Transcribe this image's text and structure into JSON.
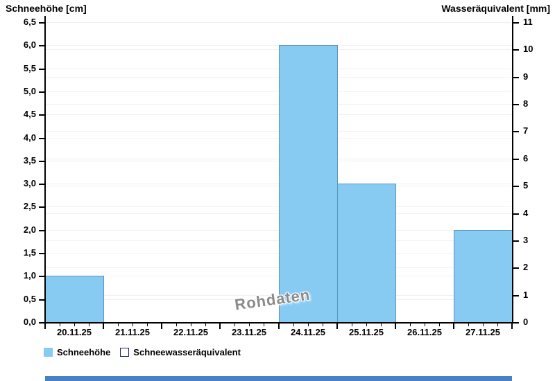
{
  "chart_data": {
    "type": "bar",
    "left_axis": {
      "label": "Schneehöhe [cm]",
      "min": 0,
      "max": 6.5,
      "step": 0.5,
      "tick_labels": [
        "0,0",
        "0,5",
        "1,0",
        "1,5",
        "2,0",
        "2,5",
        "3,0",
        "3,5",
        "4,0",
        "4,5",
        "5,0",
        "5,5",
        "6,0",
        "6,5"
      ]
    },
    "right_axis": {
      "label": "Wasseräquivalent [mm]",
      "min": 0,
      "max": 11,
      "step": 1,
      "tick_labels": [
        "0",
        "1",
        "2",
        "3",
        "4",
        "5",
        "6",
        "7",
        "8",
        "9",
        "10",
        "11"
      ]
    },
    "categories": [
      "20.11.25",
      "21.11.25",
      "22.11.25",
      "23.11.25",
      "24.11.25",
      "25.11.25",
      "26.11.25",
      "27.11.25"
    ],
    "series": [
      {
        "name": "Schneehöhe",
        "axis": "left",
        "unit": "cm",
        "values": [
          1,
          0,
          0,
          0,
          6,
          3,
          0,
          2
        ]
      },
      {
        "name": "Schneewasseräquivalent",
        "axis": "right",
        "unit": "mm",
        "values": [
          0,
          0,
          0,
          0,
          0,
          0,
          0,
          0
        ]
      }
    ],
    "watermark": "Rohdaten",
    "grid": "horizontal-both-axes",
    "legend_position": "bottom-left"
  },
  "legend": {
    "items": [
      {
        "label": "Schneehöhe",
        "swatch": "filled-lightblue"
      },
      {
        "label": "Schneewasseräquivalent",
        "swatch": "outlined-navy"
      }
    ]
  },
  "colors": {
    "background": "#ffffff",
    "bar_fill": "#87cbf3",
    "bar_border": "#5b94bd",
    "axis": "#000000",
    "grid": "#f0f0f0",
    "legend_outline": "#1a1a80",
    "watermark_text": "#8a8a8a",
    "scrollbar": "#4a80c4"
  }
}
